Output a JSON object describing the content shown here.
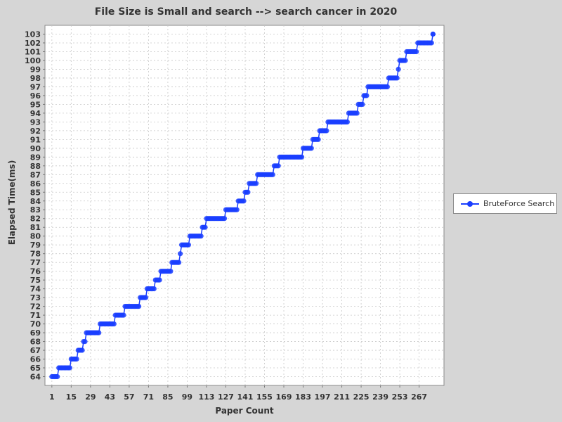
{
  "chart_data": {
    "type": "scatter",
    "title": "File Size is Small and search --> search cancer in 2020",
    "xlabel": "Paper Count",
    "ylabel": "Elapsed Time(ms)",
    "xlim": [
      -4,
      285
    ],
    "ylim": [
      63,
      104
    ],
    "x_ticks": [
      1,
      15,
      29,
      43,
      57,
      71,
      85,
      99,
      113,
      127,
      141,
      155,
      169,
      183,
      197,
      211,
      225,
      239,
      253,
      267
    ],
    "y_ticks": [
      64,
      65,
      66,
      67,
      68,
      69,
      70,
      71,
      72,
      73,
      74,
      75,
      76,
      77,
      78,
      79,
      80,
      81,
      82,
      83,
      84,
      85,
      86,
      87,
      88,
      89,
      90,
      91,
      92,
      93,
      94,
      95,
      96,
      97,
      98,
      99,
      100,
      101,
      102,
      103
    ],
    "grid": true,
    "legend_position": "right",
    "series": [
      {
        "name": "BruteForce Search",
        "color": "#1a3eff",
        "steps": [
          [
            1,
            6,
            64
          ],
          [
            6,
            15,
            65
          ],
          [
            15,
            20,
            66
          ],
          [
            20,
            24,
            67
          ],
          [
            24,
            26,
            68
          ],
          [
            26,
            36,
            69
          ],
          [
            36,
            47,
            70
          ],
          [
            47,
            54,
            71
          ],
          [
            54,
            65,
            72
          ],
          [
            65,
            70,
            73
          ],
          [
            70,
            76,
            74
          ],
          [
            76,
            80,
            75
          ],
          [
            80,
            88,
            76
          ],
          [
            88,
            94,
            77
          ],
          [
            94,
            95,
            78
          ],
          [
            95,
            101,
            79
          ],
          [
            101,
            110,
            80
          ],
          [
            110,
            113,
            81
          ],
          [
            113,
            127,
            82
          ],
          [
            127,
            136,
            83
          ],
          [
            136,
            141,
            84
          ],
          [
            141,
            144,
            85
          ],
          [
            144,
            150,
            86
          ],
          [
            150,
            162,
            87
          ],
          [
            162,
            166,
            88
          ],
          [
            166,
            183,
            89
          ],
          [
            183,
            190,
            90
          ],
          [
            190,
            195,
            91
          ],
          [
            195,
            201,
            92
          ],
          [
            201,
            216,
            93
          ],
          [
            216,
            223,
            94
          ],
          [
            223,
            227,
            95
          ],
          [
            227,
            230,
            96
          ],
          [
            230,
            245,
            97
          ],
          [
            245,
            252,
            98
          ],
          [
            252,
            253,
            99
          ],
          [
            253,
            258,
            100
          ],
          [
            258,
            266,
            101
          ],
          [
            266,
            277,
            102
          ],
          [
            277,
            278,
            103
          ]
        ]
      }
    ]
  }
}
